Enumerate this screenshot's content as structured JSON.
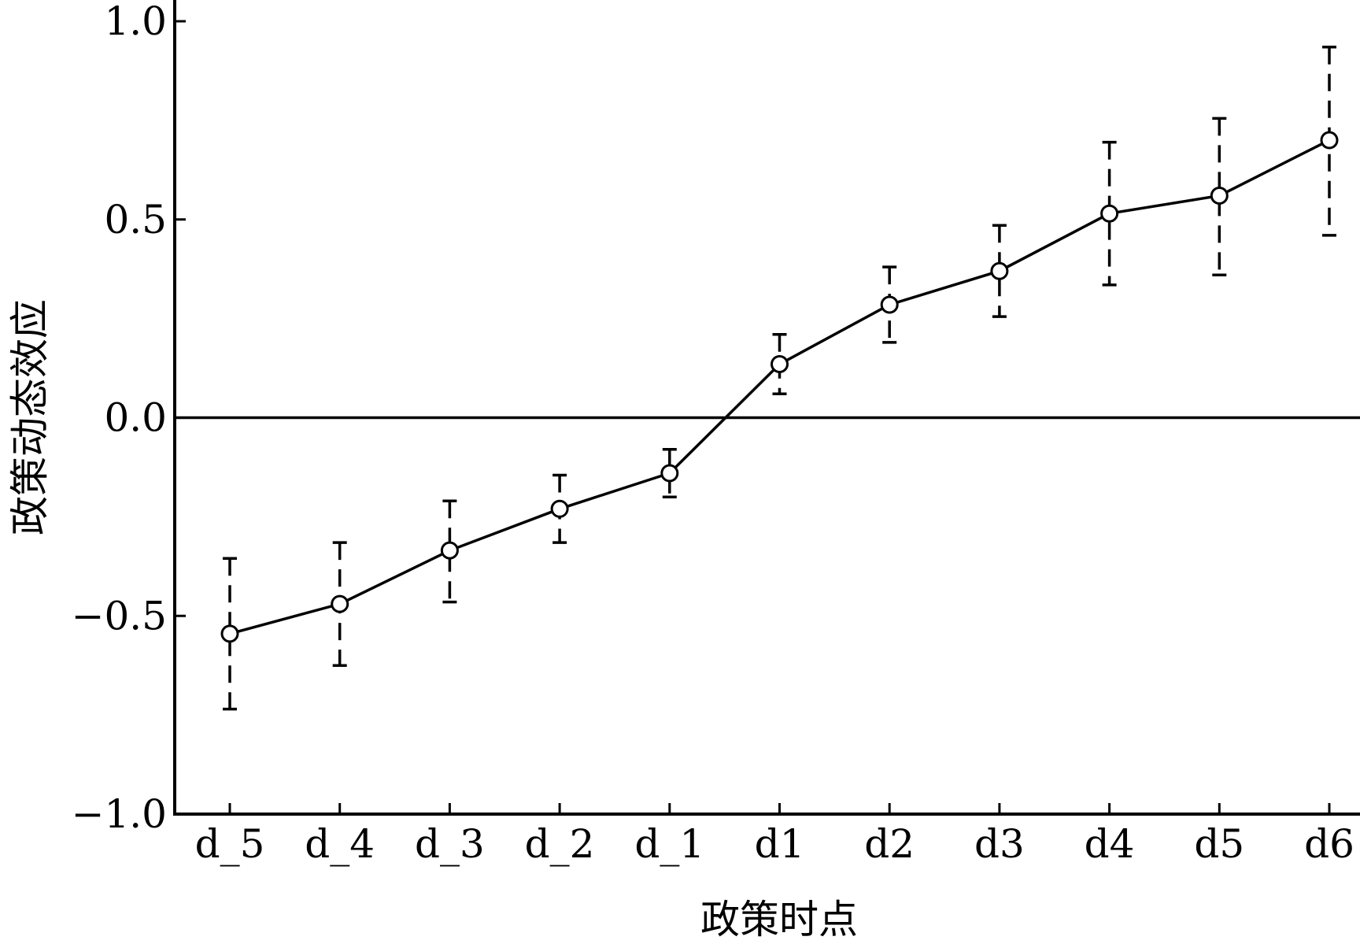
{
  "chart_data": {
    "type": "line",
    "title": "",
    "xlabel": "政策时点",
    "ylabel": "政策动态效应",
    "categories": [
      "d_5",
      "d_4",
      "d_3",
      "d_2",
      "d_1",
      "d1",
      "d2",
      "d3",
      "d4",
      "d5",
      "d6"
    ],
    "series": [
      {
        "values": [
          -0.545,
          -0.47,
          -0.335,
          -0.23,
          -0.14,
          0.135,
          0.285,
          0.37,
          0.515,
          0.56,
          0.7
        ],
        "ci_lower": [
          -0.735,
          -0.625,
          -0.465,
          -0.315,
          -0.2,
          0.06,
          0.19,
          0.255,
          0.335,
          0.36,
          0.46
        ],
        "ci_upper": [
          -0.355,
          -0.315,
          -0.21,
          -0.145,
          -0.08,
          0.21,
          0.38,
          0.485,
          0.695,
          0.755,
          0.935
        ]
      }
    ],
    "ylim": [
      -1.0,
      1.0
    ],
    "yticks": [
      "1.0",
      "0.5",
      "0.0",
      "−0.5",
      "−1.0"
    ],
    "ytick_values": [
      1.0,
      0.5,
      0.0,
      -0.5,
      -1.0
    ],
    "reference_line": 0.0,
    "grid": false,
    "legend": "none",
    "line_color": "#000000",
    "marker": "open-circle",
    "error_bar_style": "dashed"
  }
}
